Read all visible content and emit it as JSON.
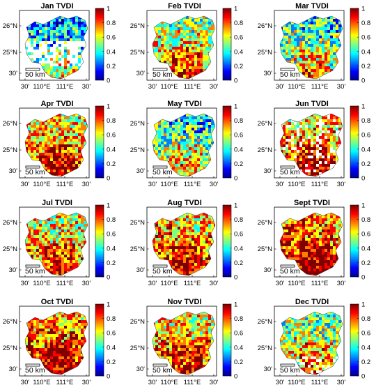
{
  "figure": {
    "panels": [
      {
        "title": "Jan  TVDI"
      },
      {
        "title": "Feb  TVDI"
      },
      {
        "title": "Mar  TVDI"
      },
      {
        "title": "Apr  TVDI"
      },
      {
        "title": "May  TVDI"
      },
      {
        "title": "Jun  TVDI"
      },
      {
        "title": "Jul  TVDI"
      },
      {
        "title": "Aug  TVDI"
      },
      {
        "title": "Sept  TVDI"
      },
      {
        "title": "Oct  TVDI"
      },
      {
        "title": "Nov  TVDI"
      },
      {
        "title": "Dec  TVDI"
      }
    ],
    "lat_ticks": [
      "26°N",
      "25°N",
      "30'"
    ],
    "lon_ticks": [
      "30'",
      "110°E",
      "111°E",
      "30'"
    ],
    "colorbar_ticks": [
      "1",
      "0.8",
      "0.6",
      "0.4",
      "0.2",
      "0"
    ],
    "colorbar_colors": [
      "#00008f",
      "#0000ff",
      "#0080ff",
      "#00ffff",
      "#80ff80",
      "#ffff00",
      "#ff8000",
      "#ff0000",
      "#800000"
    ],
    "scale_bar": "50 km"
  }
}
